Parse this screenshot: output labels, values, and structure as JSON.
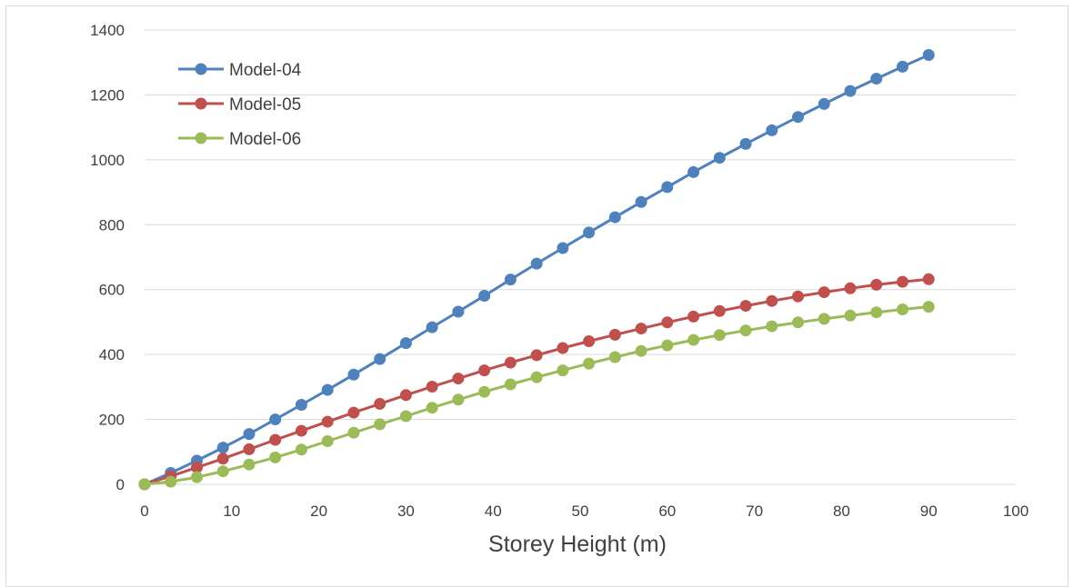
{
  "chart_data": {
    "type": "line",
    "title": "",
    "xlabel": "Storey Height (m)",
    "ylabel": "",
    "xlim": [
      0,
      100
    ],
    "ylim": [
      0,
      1400
    ],
    "xticks": [
      0,
      10,
      20,
      30,
      40,
      50,
      60,
      70,
      80,
      90,
      100
    ],
    "yticks": [
      0,
      200,
      400,
      600,
      800,
      1000,
      1200,
      1400
    ],
    "grid": "horizontal",
    "legend": "top-left",
    "x": [
      0,
      3,
      6,
      9,
      12,
      15,
      18,
      21,
      24,
      27,
      30,
      33,
      36,
      39,
      42,
      45,
      48,
      51,
      54,
      57,
      60,
      63,
      66,
      69,
      72,
      75,
      78,
      81,
      84,
      87,
      90
    ],
    "series": [
      {
        "name": "Model-04",
        "color": "#4f81bd",
        "values": [
          0,
          35,
          73,
          113,
          155,
          200,
          245,
          291,
          338,
          386,
          435,
          484,
          532,
          581,
          631,
          680,
          728,
          776,
          823,
          870,
          916,
          962,
          1006,
          1049,
          1091,
          1132,
          1172,
          1212,
          1250,
          1287,
          1323
        ]
      },
      {
        "name": "Model-05",
        "color": "#c0504d",
        "values": [
          0,
          25,
          52,
          79,
          108,
          137,
          165,
          193,
          221,
          248,
          275,
          301,
          326,
          351,
          375,
          398,
          420,
          441,
          461,
          480,
          499,
          517,
          534,
          550,
          565,
          579,
          592,
          604,
          615,
          624,
          632
        ]
      },
      {
        "name": "Model-06",
        "color": "#9bbb59",
        "values": [
          0,
          8,
          22,
          40,
          61,
          83,
          107,
          133,
          159,
          185,
          210,
          236,
          261,
          285,
          308,
          330,
          351,
          372,
          392,
          411,
          428,
          445,
          460,
          474,
          487,
          499,
          510,
          520,
          530,
          539,
          547
        ]
      }
    ]
  }
}
